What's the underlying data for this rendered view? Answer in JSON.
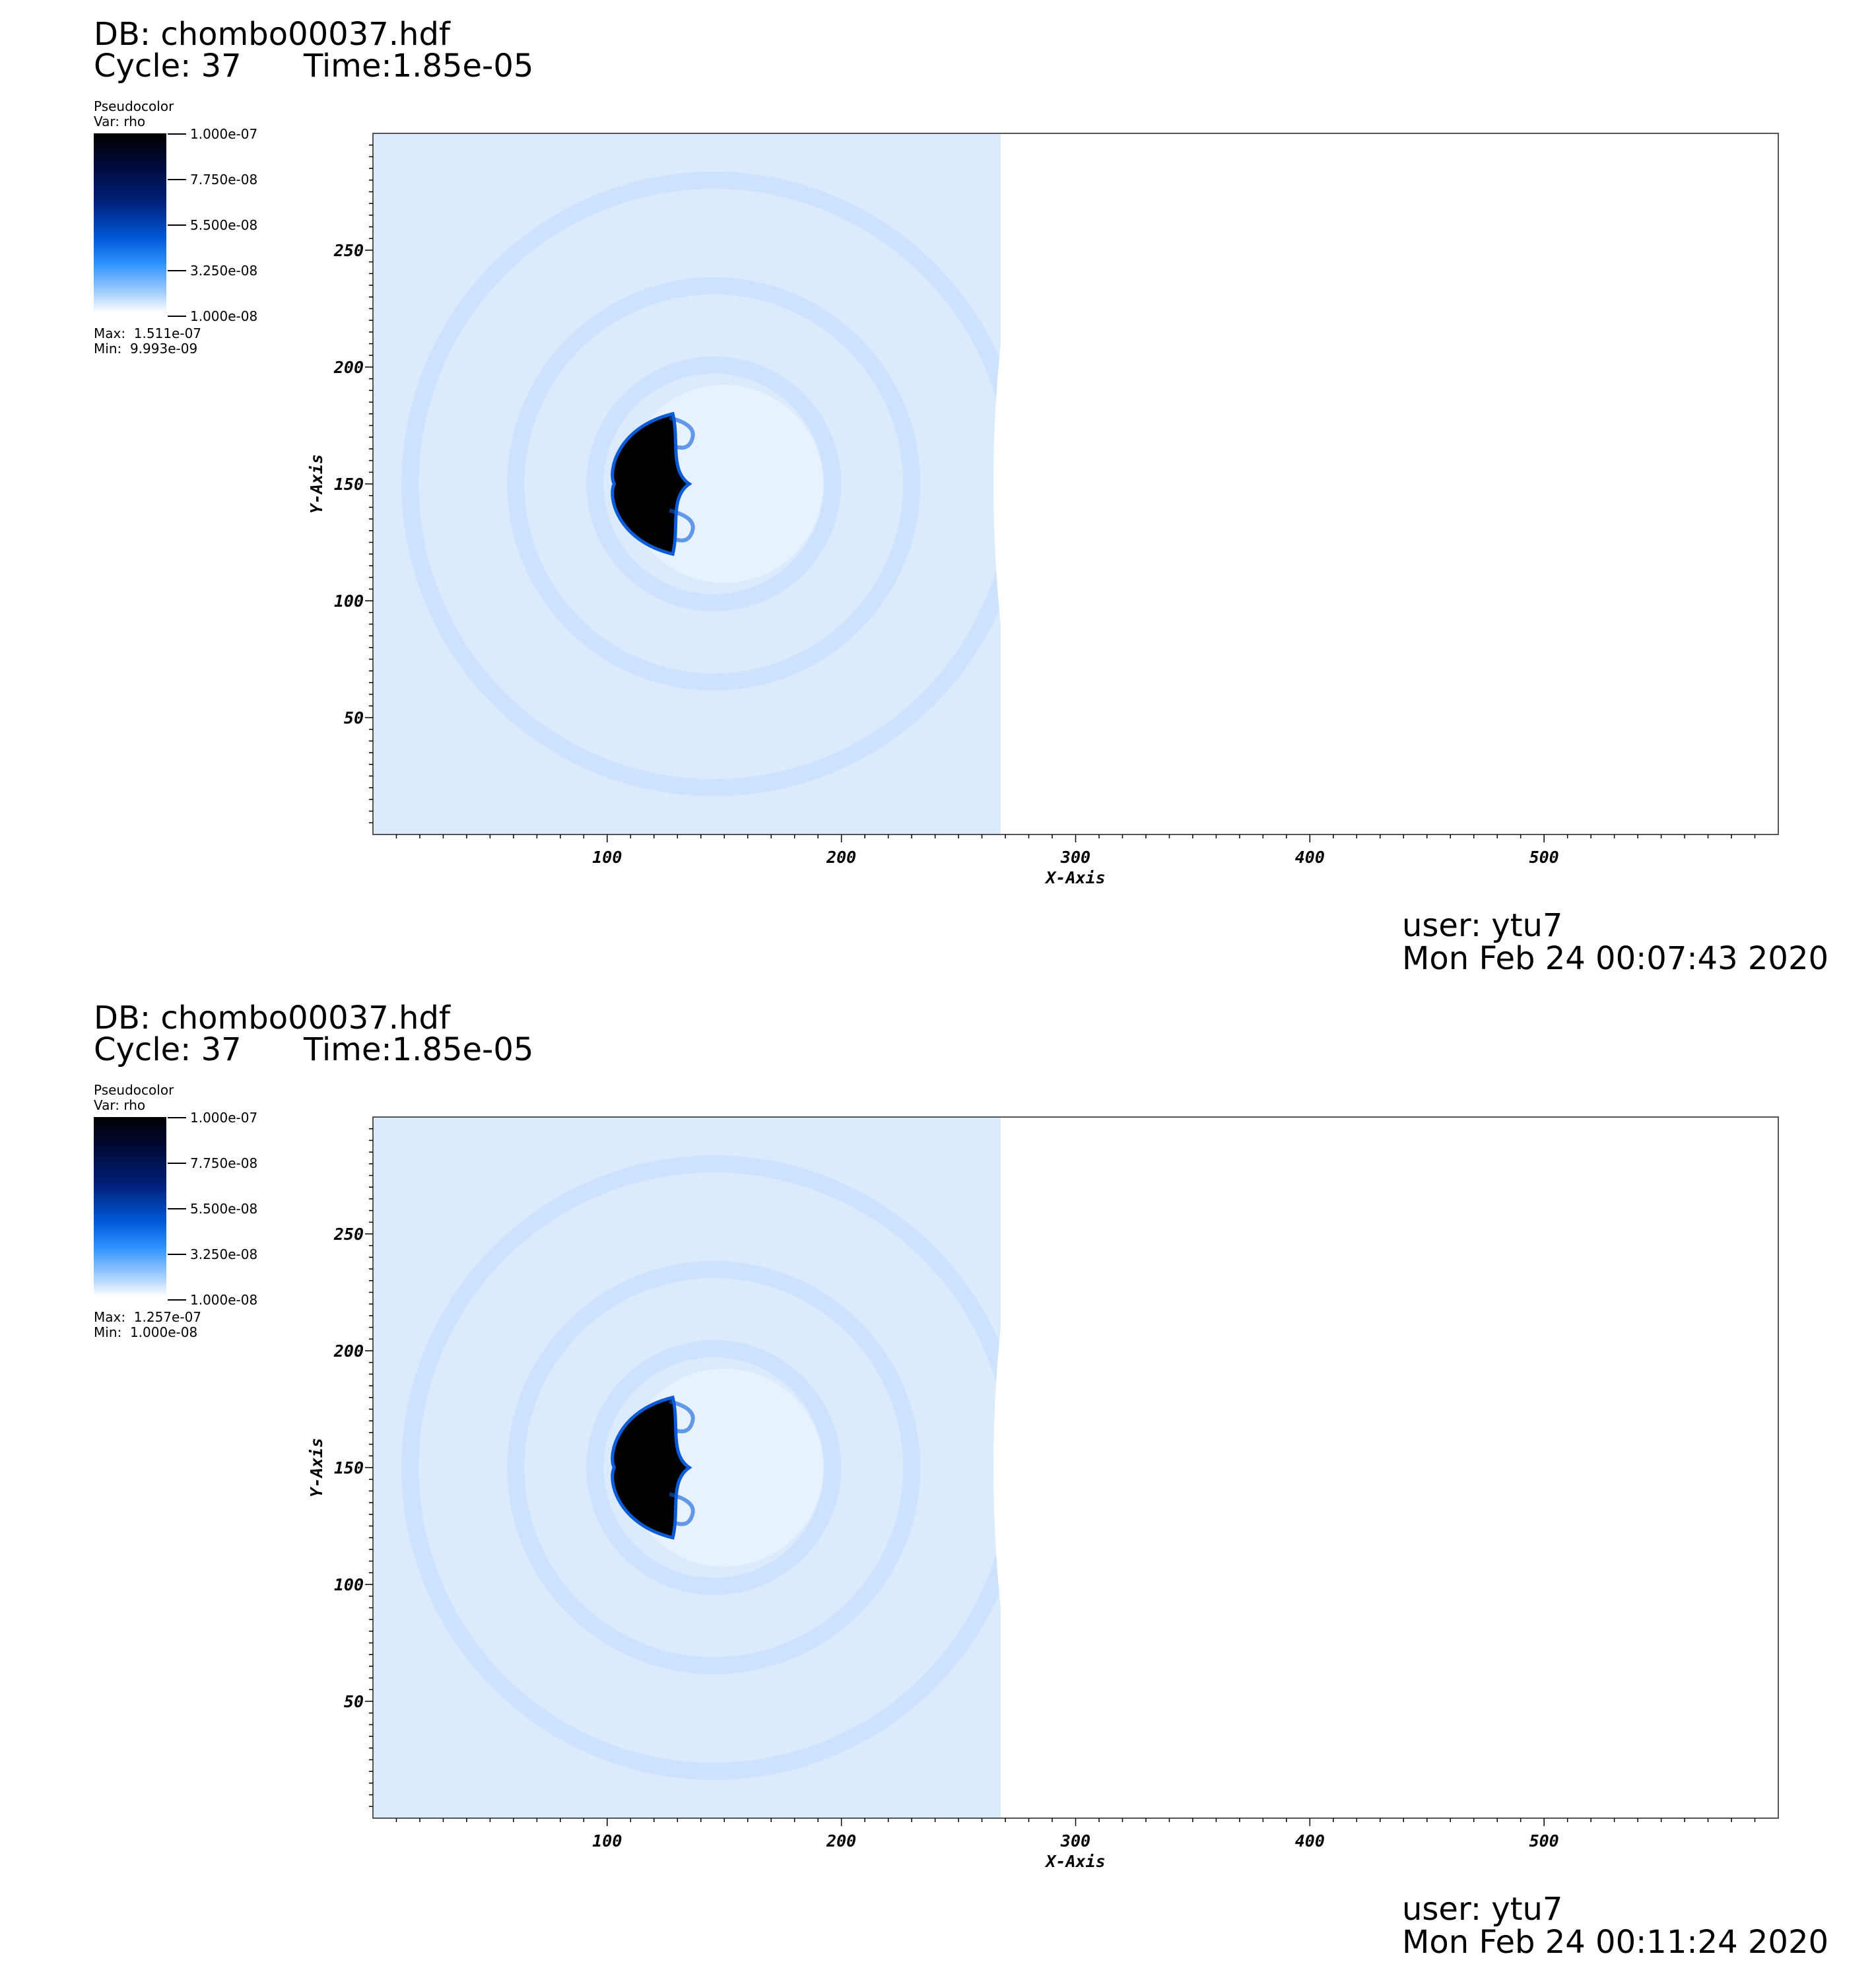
{
  "panels": [
    {
      "db": "DB: chombo00037.hdf",
      "cycle": "Cycle: 37",
      "time": "Time:1.85e-05",
      "legend": {
        "title": "Pseudocolor",
        "var": "Var: rho",
        "max": "Max:  1.511e-07",
        "min": "Min:  9.993e-09"
      },
      "user": "user: ytu7",
      "date": "Mon Feb 24 00:07:43 2020"
    },
    {
      "db": "DB: chombo00037.hdf",
      "cycle": "Cycle: 37",
      "time": "Time:1.85e-05",
      "legend": {
        "title": "Pseudocolor",
        "var": "Var: rho",
        "max": "Max:  1.257e-07",
        "min": "Min:  1.000e-08"
      },
      "user": "user: ytu7",
      "date": "Mon Feb 24 00:11:24 2020"
    }
  ],
  "colorbar_labels": [
    "1.000e-07",
    "7.750e-08",
    "5.500e-08",
    "3.250e-08",
    "1.000e-08"
  ],
  "colors": {
    "ambient": "#dbeafd",
    "shell": "#c9e0fb",
    "clump": "#000000",
    "rim": "#0a5cd8"
  },
  "chart_data": [
    {
      "type": "heatmap",
      "variable": "rho",
      "xlabel": "X-Axis",
      "ylabel": "Y-Axis",
      "xlim": [
        0,
        600
      ],
      "ylim": [
        0,
        300
      ],
      "xticks": [
        100,
        200,
        300,
        400,
        500
      ],
      "yticks": [
        50,
        100,
        150,
        200,
        250
      ],
      "colorbar_range": [
        1e-08,
        1e-07
      ],
      "data_max": 1.511e-07,
      "data_min": 9.993e-09,
      "shock_front_x": 268,
      "clump": {
        "x_min": 103,
        "x_max": 128,
        "y_min": 120,
        "y_max": 180
      }
    },
    {
      "type": "heatmap",
      "variable": "rho",
      "xlabel": "X-Axis",
      "ylabel": "Y-Axis",
      "xlim": [
        0,
        600
      ],
      "ylim": [
        0,
        300
      ],
      "xticks": [
        100,
        200,
        300,
        400,
        500
      ],
      "yticks": [
        50,
        100,
        150,
        200,
        250
      ],
      "colorbar_range": [
        1e-08,
        1e-07
      ],
      "data_max": 1.257e-07,
      "data_min": 1e-08,
      "shock_front_x": 268,
      "clump": {
        "x_min": 103,
        "x_max": 128,
        "y_min": 120,
        "y_max": 180
      }
    }
  ]
}
